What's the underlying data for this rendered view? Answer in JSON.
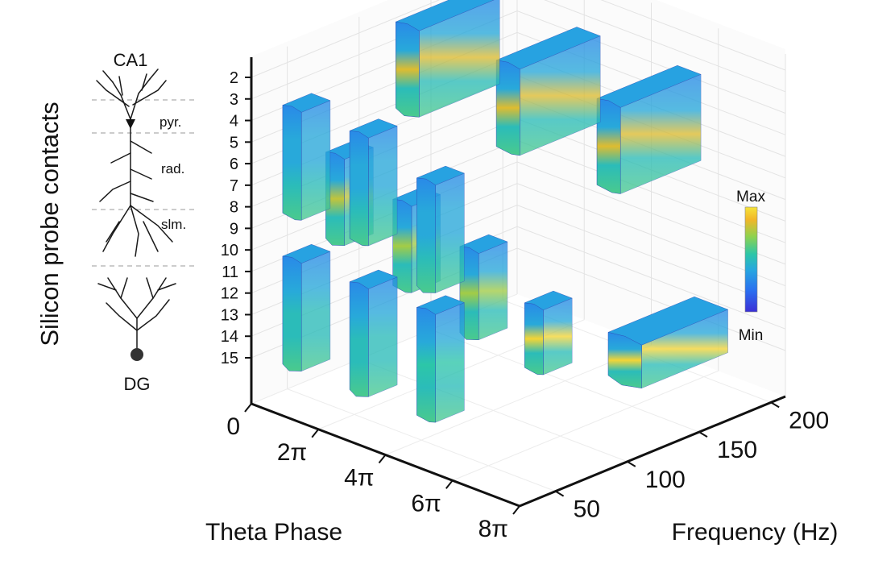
{
  "chart_data": {
    "type": "3d-isosurface",
    "ylabel": "Silicon probe contacts",
    "xlabel": "Theta Phase",
    "zlabel": "Frequency (Hz)",
    "contacts": [
      "2",
      "3",
      "4",
      "5",
      "6",
      "7",
      "8",
      "9",
      "10",
      "11",
      "12",
      "13",
      "14",
      "15"
    ],
    "phase_ticks": [
      "0",
      "2π",
      "4π",
      "6π",
      "8π"
    ],
    "freq_ticks": [
      "50",
      "100",
      "150",
      "200"
    ],
    "phase_range": [
      "0",
      "8π"
    ],
    "freq_range": [
      25,
      210
    ],
    "colorbar": {
      "max_label": "Max",
      "min_label": "Min",
      "colors": [
        "#3b2fd6",
        "#2a6ef0",
        "#27a6e0",
        "#2cc6a8",
        "#8fd24e",
        "#f2b628",
        "#f5e33a"
      ]
    },
    "neuron": {
      "title": "CA1",
      "layers": [
        "pyr.",
        "rad.",
        "slm."
      ],
      "bottom_label": "DG"
    },
    "blobs": [
      {
        "phase": 1.0,
        "freq": 40,
        "c_top": 3,
        "c_bot": 8,
        "peak": 0.35
      },
      {
        "phase": 1.0,
        "freq": 40,
        "c_top": 10,
        "c_bot": 15,
        "peak": 0.45
      },
      {
        "phase": 3.0,
        "freq": 40,
        "c_top": 3,
        "c_bot": 8,
        "peak": 0.35
      },
      {
        "phase": 3.0,
        "freq": 40,
        "c_top": 10,
        "c_bot": 15,
        "peak": 0.45
      },
      {
        "phase": 5.0,
        "freq": 40,
        "c_top": 4,
        "c_bot": 9,
        "peak": 0.35
      },
      {
        "phase": 5.0,
        "freq": 40,
        "c_top": 10,
        "c_bot": 15,
        "peak": 0.5
      },
      {
        "phase": 1.0,
        "freq": 70,
        "c_top": 6,
        "c_bot": 10,
        "peak": 0.75
      },
      {
        "phase": 3.0,
        "freq": 70,
        "c_top": 7,
        "c_bot": 11,
        "peak": 0.7
      },
      {
        "phase": 5.0,
        "freq": 70,
        "c_top": 8,
        "c_bot": 12,
        "peak": 0.7
      },
      {
        "phase": 6.5,
        "freq": 80,
        "c_top": 10,
        "c_bot": 13,
        "peak": 0.95
      },
      {
        "phase": 0.5,
        "freq": 150,
        "c_top": 2,
        "c_bot": 6,
        "peak": 0.8
      },
      {
        "phase": 3.5,
        "freq": 150,
        "c_top": 2,
        "c_bot": 6,
        "peak": 0.8
      },
      {
        "phase": 6.5,
        "freq": 150,
        "c_top": 2,
        "c_bot": 6,
        "peak": 0.8
      },
      {
        "phase": 7.5,
        "freq": 140,
        "c_top": 12,
        "c_bot": 14,
        "peak": 0.95
      }
    ]
  }
}
